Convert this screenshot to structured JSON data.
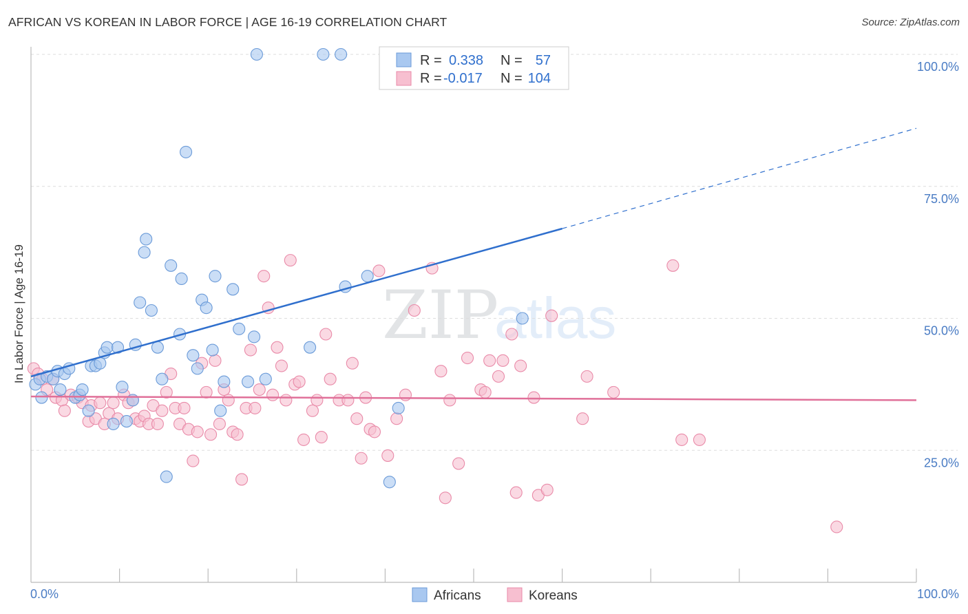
{
  "header": {
    "title": "AFRICAN VS KOREAN IN LABOR FORCE | AGE 16-19 CORRELATION CHART",
    "source": "Source: ZipAtlas.com"
  },
  "watermark": {
    "zip": "ZIP",
    "atlas": "atlas"
  },
  "legend": {
    "rows": [
      {
        "r_label": "R =",
        "r_value": "0.338",
        "n_label": "N =",
        "n_value": "57"
      },
      {
        "r_label": "R =",
        "r_value": "-0.017",
        "n_label": "N =",
        "n_value": "104"
      }
    ]
  },
  "bottom_legend": {
    "africans": "Africans",
    "koreans": "Koreans"
  },
  "colors": {
    "africans_fill": "#a9c8f0",
    "africans_stroke": "#6a9ad8",
    "africans_line": "#2f6fcd",
    "koreans_fill": "#f7bfd0",
    "koreans_stroke": "#e98aa8",
    "koreans_line": "#e07099",
    "tick_text": "#4a7cc4",
    "grid": "#dddddd"
  },
  "chart_data": {
    "type": "scatter",
    "title": "AFRICAN VS KOREAN IN LABOR FORCE | AGE 16-19 CORRELATION CHART",
    "xlabel": "",
    "ylabel": "In Labor Force | Age 16-19",
    "xlim": [
      0,
      100
    ],
    "ylim": [
      0,
      100
    ],
    "x_tick_labels": [
      "0.0%",
      "100.0%"
    ],
    "y_ticks": [
      25,
      50,
      75,
      100
    ],
    "y_tick_labels": [
      "25.0%",
      "50.0%",
      "75.0%",
      "100.0%"
    ],
    "grid": true,
    "legend_position": "top-center",
    "series": [
      {
        "name": "Africans",
        "r": 0.338,
        "n": 57,
        "trend": {
          "x0": 0,
          "y0": 39.0,
          "x1": 60,
          "y1": 67.0,
          "dashed_to_x": 100,
          "dashed_to_y": 86.0
        },
        "points": [
          [
            0.5,
            37.5
          ],
          [
            1.0,
            38.5
          ],
          [
            1.2,
            35.0
          ],
          [
            1.8,
            39.0
          ],
          [
            2.5,
            38.5
          ],
          [
            3.0,
            40.0
          ],
          [
            3.3,
            36.5
          ],
          [
            3.8,
            39.5
          ],
          [
            4.3,
            40.5
          ],
          [
            5.0,
            35.0
          ],
          [
            5.5,
            35.5
          ],
          [
            5.8,
            36.5
          ],
          [
            6.5,
            32.5
          ],
          [
            6.8,
            41.0
          ],
          [
            7.3,
            41.0
          ],
          [
            7.8,
            41.5
          ],
          [
            8.3,
            43.5
          ],
          [
            8.6,
            44.5
          ],
          [
            9.3,
            30.0
          ],
          [
            9.8,
            44.5
          ],
          [
            10.3,
            37.0
          ],
          [
            10.8,
            30.5
          ],
          [
            11.5,
            34.5
          ],
          [
            11.8,
            45.0
          ],
          [
            12.3,
            53.0
          ],
          [
            12.8,
            62.5
          ],
          [
            13.0,
            65.0
          ],
          [
            13.6,
            51.5
          ],
          [
            14.3,
            44.5
          ],
          [
            14.8,
            38.5
          ],
          [
            15.3,
            20.0
          ],
          [
            15.8,
            60.0
          ],
          [
            16.8,
            47.0
          ],
          [
            17.0,
            57.5
          ],
          [
            17.5,
            81.5
          ],
          [
            18.3,
            43.0
          ],
          [
            18.8,
            40.5
          ],
          [
            19.3,
            53.5
          ],
          [
            19.8,
            52.0
          ],
          [
            20.5,
            44.0
          ],
          [
            20.8,
            58.0
          ],
          [
            21.4,
            32.5
          ],
          [
            21.8,
            38.0
          ],
          [
            22.8,
            55.5
          ],
          [
            23.5,
            48.0
          ],
          [
            24.5,
            38.0
          ],
          [
            25.2,
            46.5
          ],
          [
            25.5,
            100.0
          ],
          [
            26.5,
            38.5
          ],
          [
            31.5,
            44.5
          ],
          [
            33.0,
            100.0
          ],
          [
            35.0,
            100.0
          ],
          [
            35.5,
            56.0
          ],
          [
            38.0,
            58.0
          ],
          [
            40.5,
            19.0
          ],
          [
            41.5,
            33.0
          ],
          [
            55.5,
            50.0
          ]
        ]
      },
      {
        "name": "Koreans",
        "r": -0.017,
        "n": 104,
        "trend": {
          "x0": 0,
          "y0": 35.2,
          "x1": 100,
          "y1": 34.5
        },
        "points": [
          [
            0.3,
            40.5
          ],
          [
            0.8,
            39.5
          ],
          [
            1.3,
            38.5
          ],
          [
            1.8,
            36.5
          ],
          [
            2.5,
            38.5
          ],
          [
            2.8,
            35.0
          ],
          [
            3.5,
            34.5
          ],
          [
            3.8,
            32.5
          ],
          [
            4.5,
            35.5
          ],
          [
            5.3,
            35.0
          ],
          [
            5.8,
            34.0
          ],
          [
            6.5,
            30.5
          ],
          [
            6.8,
            33.5
          ],
          [
            7.3,
            31.0
          ],
          [
            7.8,
            34.0
          ],
          [
            8.3,
            30.0
          ],
          [
            8.8,
            32.0
          ],
          [
            9.3,
            34.0
          ],
          [
            9.8,
            31.0
          ],
          [
            10.5,
            35.5
          ],
          [
            11.0,
            34.0
          ],
          [
            11.5,
            34.5
          ],
          [
            11.8,
            31.0
          ],
          [
            12.3,
            30.5
          ],
          [
            12.8,
            31.5
          ],
          [
            13.3,
            30.0
          ],
          [
            13.8,
            33.5
          ],
          [
            14.3,
            30.0
          ],
          [
            14.8,
            32.5
          ],
          [
            15.3,
            36.0
          ],
          [
            15.8,
            39.5
          ],
          [
            16.3,
            33.0
          ],
          [
            16.8,
            30.0
          ],
          [
            17.3,
            33.0
          ],
          [
            17.8,
            29.0
          ],
          [
            18.3,
            23.0
          ],
          [
            18.8,
            28.5
          ],
          [
            19.3,
            41.5
          ],
          [
            19.8,
            36.0
          ],
          [
            20.3,
            28.0
          ],
          [
            20.8,
            42.0
          ],
          [
            21.3,
            30.0
          ],
          [
            21.8,
            36.5
          ],
          [
            22.3,
            34.5
          ],
          [
            22.8,
            28.5
          ],
          [
            23.3,
            28.0
          ],
          [
            23.8,
            19.5
          ],
          [
            24.3,
            33.0
          ],
          [
            24.8,
            44.0
          ],
          [
            25.3,
            33.0
          ],
          [
            25.8,
            36.5
          ],
          [
            26.3,
            58.0
          ],
          [
            26.8,
            52.0
          ],
          [
            27.3,
            35.5
          ],
          [
            27.8,
            44.5
          ],
          [
            28.3,
            41.0
          ],
          [
            28.8,
            34.5
          ],
          [
            29.3,
            61.0
          ],
          [
            29.8,
            37.5
          ],
          [
            30.3,
            38.0
          ],
          [
            30.8,
            27.0
          ],
          [
            31.8,
            32.5
          ],
          [
            32.3,
            34.5
          ],
          [
            32.8,
            27.5
          ],
          [
            33.3,
            47.0
          ],
          [
            33.8,
            38.5
          ],
          [
            34.8,
            34.5
          ],
          [
            35.8,
            34.5
          ],
          [
            36.3,
            41.5
          ],
          [
            36.8,
            31.0
          ],
          [
            37.3,
            23.5
          ],
          [
            37.8,
            35.0
          ],
          [
            38.3,
            29.0
          ],
          [
            38.8,
            28.5
          ],
          [
            39.3,
            59.0
          ],
          [
            40.3,
            24.0
          ],
          [
            41.3,
            31.0
          ],
          [
            42.3,
            35.5
          ],
          [
            43.3,
            51.5
          ],
          [
            45.3,
            59.5
          ],
          [
            46.3,
            40.0
          ],
          [
            46.8,
            16.0
          ],
          [
            47.3,
            34.5
          ],
          [
            48.3,
            22.5
          ],
          [
            49.3,
            42.5
          ],
          [
            50.8,
            36.5
          ],
          [
            51.3,
            36.0
          ],
          [
            51.8,
            42.0
          ],
          [
            52.8,
            39.0
          ],
          [
            53.3,
            42.0
          ],
          [
            54.3,
            47.0
          ],
          [
            54.8,
            17.0
          ],
          [
            55.3,
            41.0
          ],
          [
            56.8,
            35.0
          ],
          [
            57.3,
            16.5
          ],
          [
            58.3,
            17.5
          ],
          [
            58.8,
            50.5
          ],
          [
            62.3,
            31.0
          ],
          [
            62.8,
            39.0
          ],
          [
            65.8,
            36.0
          ],
          [
            72.5,
            60.0
          ],
          [
            73.5,
            27.0
          ],
          [
            75.5,
            27.0
          ],
          [
            91.0,
            10.5
          ]
        ]
      }
    ]
  }
}
